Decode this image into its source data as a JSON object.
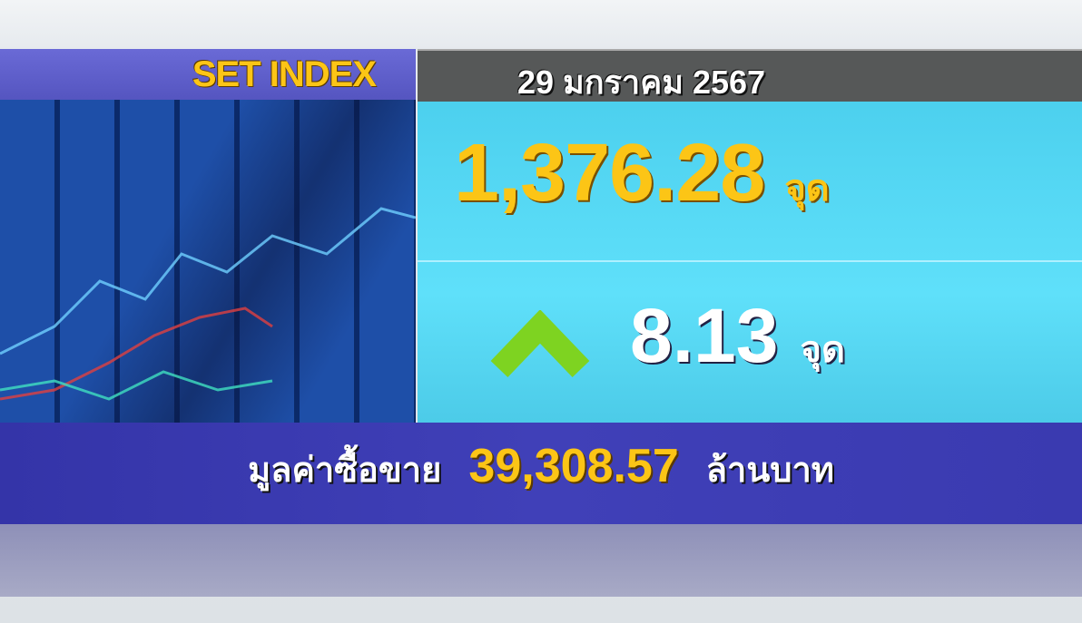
{
  "header": {
    "title": "SET INDEX",
    "date": "29 มกราคม 2567"
  },
  "index": {
    "value": "1,376.28",
    "unit": "จุด"
  },
  "change": {
    "direction": "up",
    "arrow_icon": "chevron-up-icon",
    "arrow_color": "#7ed321",
    "value": "8.13",
    "unit": "จุด"
  },
  "volume": {
    "label": "มูลค่าซื้อขาย",
    "value": "39,308.57",
    "unit": "ล้านบาท"
  },
  "colors": {
    "accent_yellow": "#fcc516",
    "title_bg": "#5f5fcc",
    "date_bg": "#565858",
    "panel_bg": "#55d8f4",
    "volume_bg": "#3a3ab0"
  }
}
